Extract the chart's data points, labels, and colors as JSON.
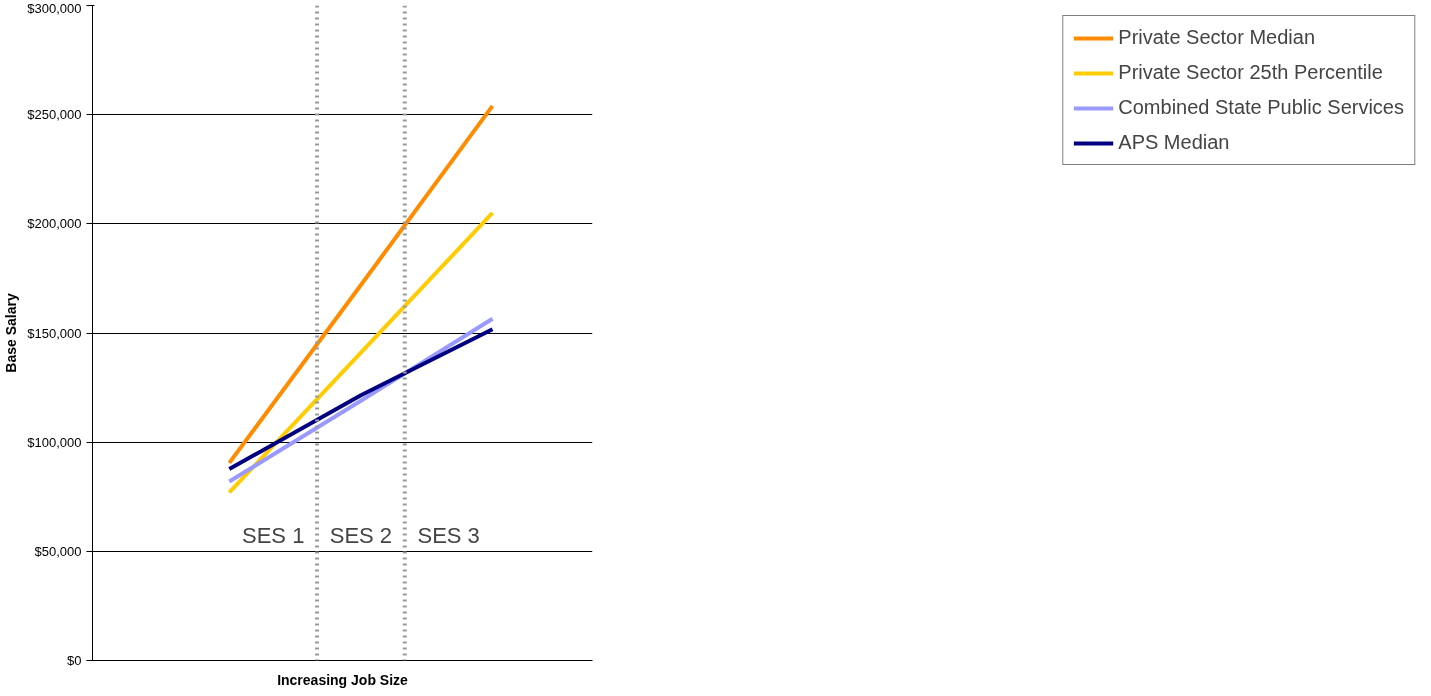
{
  "chart_data": {
    "type": "line",
    "xlabel": "Increasing Job Size",
    "ylabel": "Base Salary",
    "categories": [
      null,
      null,
      null
    ],
    "ylim": [
      0,
      300000
    ],
    "yticks": [
      {
        "value": 0,
        "label": "$0"
      },
      {
        "value": 50000,
        "label": "$50,000"
      },
      {
        "value": 100000,
        "label": "$100,000"
      },
      {
        "value": 150000,
        "label": "$150,000"
      },
      {
        "value": 200000,
        "label": "$200,000"
      },
      {
        "value": 250000,
        "label": "$250,000"
      },
      {
        "value": 300000,
        "label": "$300,000"
      }
    ],
    "series": [
      {
        "name": "Private Sector Median",
        "color": "#ff8c00",
        "values": [
          90500,
          172000,
          254000
        ]
      },
      {
        "name": "Private Sector 25th Percentile",
        "color": "#ffcc00",
        "values": [
          77000,
          141000,
          205000
        ]
      },
      {
        "name": "Combined State Public Services",
        "color": "#9999ff",
        "values": [
          82000,
          119000,
          156500
        ]
      },
      {
        "name": "APS Median",
        "color": "#000080",
        "values": [
          87700,
          121500,
          151700
        ]
      }
    ],
    "annotations": [
      "SES 1",
      "SES 2",
      "SES 3"
    ],
    "grid": "y",
    "legend": "right",
    "tick_labels": "y",
    "line_style": "solid"
  }
}
